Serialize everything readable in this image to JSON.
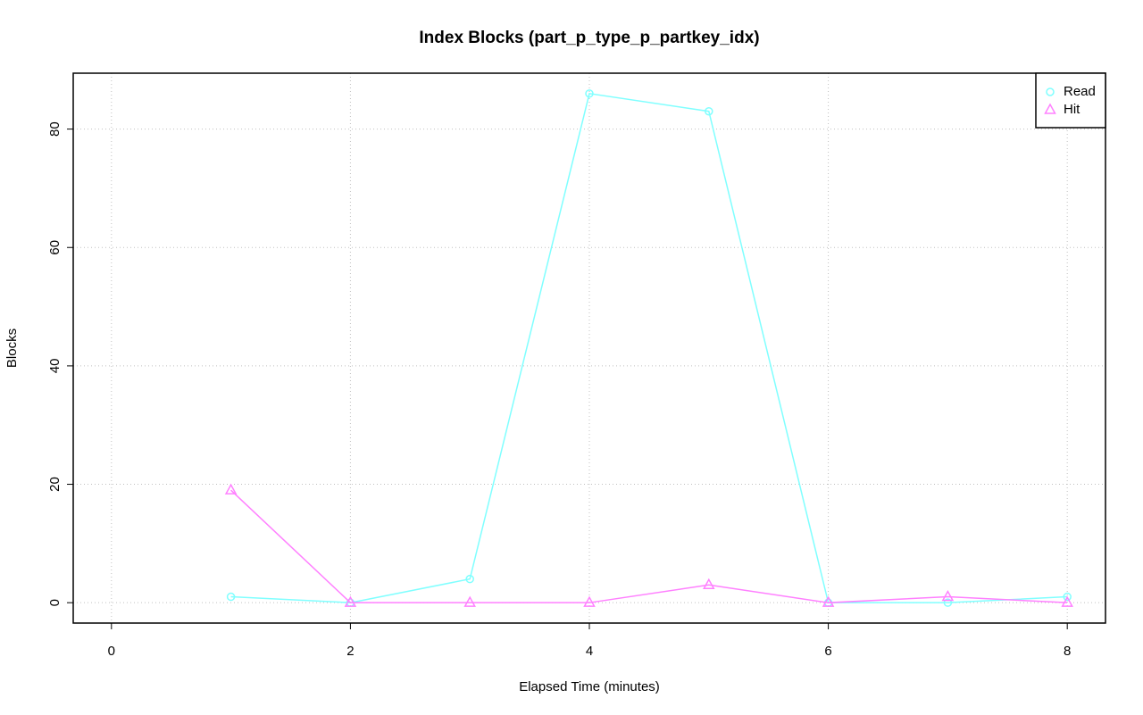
{
  "chart_data": {
    "type": "line",
    "title": "Index Blocks (part_p_type_p_partkey_idx)",
    "x_label": "Elapsed Time (minutes)",
    "y_label": "Blocks",
    "x": [
      1,
      2,
      3,
      4,
      5,
      6,
      7,
      8
    ],
    "series": [
      {
        "name": "Read",
        "color": "#80ffff",
        "marker": "circle",
        "values": [
          1,
          0,
          4,
          86,
          83,
          0,
          0,
          1
        ]
      },
      {
        "name": "Hit",
        "color": "#ff80ff",
        "marker": "triangle",
        "values": [
          19,
          0,
          0,
          0,
          3,
          0,
          1,
          0
        ]
      }
    ],
    "xlim": [
      -0.32,
      8.32
    ],
    "xticks": [
      0,
      2,
      4,
      6,
      8
    ],
    "ylim": [
      -3.44,
      89.44
    ],
    "yticks": [
      0,
      20,
      40,
      60,
      80
    ],
    "grid": true,
    "legend_position": "topright"
  }
}
